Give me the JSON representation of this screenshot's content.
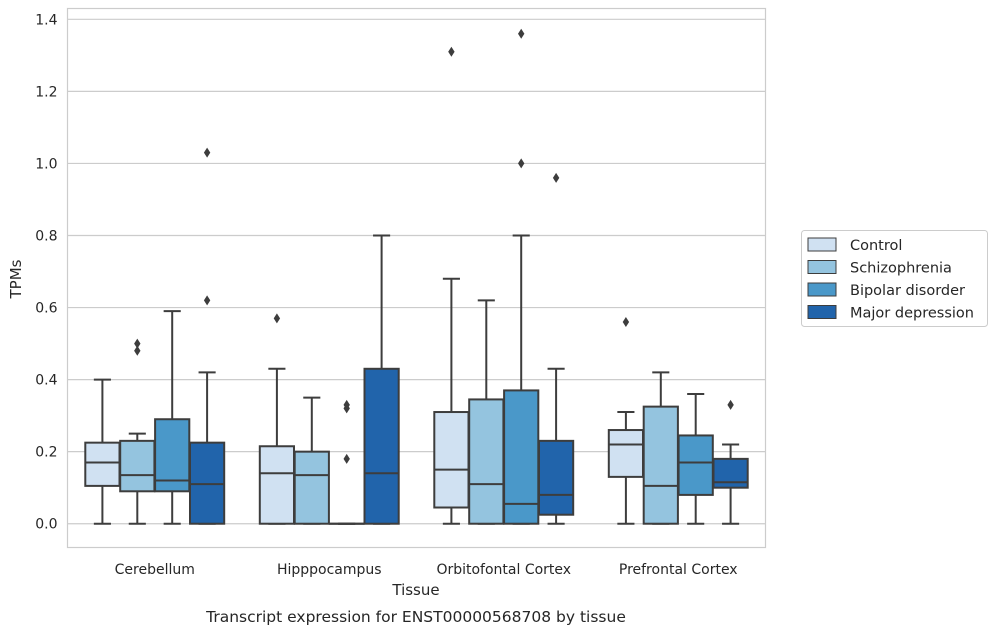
{
  "chart_data": {
    "type": "box",
    "title": "",
    "caption": "Transcript expression for ENST00000568708 by tissue",
    "xlabel": "Tissue",
    "ylabel": "TPMs",
    "ylim": [
      -0.066,
      1.43
    ],
    "yticks": [
      "0.0",
      "0.2",
      "0.4",
      "0.6",
      "0.8",
      "1.0",
      "1.2",
      "1.4"
    ],
    "grid": "horizontal",
    "legend_position": "right",
    "categories": [
      "Cerebellum",
      "Hipppocampus",
      "Orbitofontal Cortex",
      "Prefrontal Cortex"
    ],
    "series": [
      {
        "name": "Control",
        "color": "#d0e1f2",
        "boxes": [
          {
            "min": 0.0,
            "q1": 0.105,
            "median": 0.17,
            "q3": 0.225,
            "max": 0.4,
            "outliers": []
          },
          {
            "min": 0.0,
            "q1": 0.0,
            "median": 0.14,
            "q3": 0.215,
            "max": 0.43,
            "outliers": [
              0.57
            ]
          },
          {
            "min": 0.0,
            "q1": 0.045,
            "median": 0.15,
            "q3": 0.31,
            "max": 0.68,
            "outliers": [
              1.31
            ]
          },
          {
            "min": 0.0,
            "q1": 0.13,
            "median": 0.22,
            "q3": 0.26,
            "max": 0.31,
            "outliers": [
              0.56
            ]
          }
        ]
      },
      {
        "name": "Schizophrenia",
        "color": "#94c4df",
        "boxes": [
          {
            "min": 0.0,
            "q1": 0.09,
            "median": 0.135,
            "q3": 0.23,
            "max": 0.25,
            "outliers": [
              0.48,
              0.5
            ]
          },
          {
            "min": 0.0,
            "q1": 0.0,
            "median": 0.135,
            "q3": 0.2,
            "max": 0.35,
            "outliers": []
          },
          {
            "min": 0.0,
            "q1": 0.0,
            "median": 0.11,
            "q3": 0.345,
            "max": 0.62,
            "outliers": []
          },
          {
            "min": 0.0,
            "q1": 0.0,
            "median": 0.105,
            "q3": 0.325,
            "max": 0.42,
            "outliers": []
          }
        ]
      },
      {
        "name": "Bipolar disorder",
        "color": "#4a98c9",
        "boxes": [
          {
            "min": 0.0,
            "q1": 0.09,
            "median": 0.12,
            "q3": 0.29,
            "max": 0.59,
            "outliers": []
          },
          {
            "min": 0.0,
            "q1": 0.0,
            "median": 0.0,
            "q3": 0.0,
            "max": 0.0,
            "outliers": [
              0.18,
              0.32,
              0.33
            ]
          },
          {
            "min": 0.0,
            "q1": 0.0,
            "median": 0.055,
            "q3": 0.37,
            "max": 0.8,
            "outliers": [
              1.0,
              1.36
            ]
          },
          {
            "min": 0.0,
            "q1": 0.08,
            "median": 0.17,
            "q3": 0.245,
            "max": 0.36,
            "outliers": []
          }
        ]
      },
      {
        "name": "Major depression",
        "color": "#2164ab",
        "boxes": [
          {
            "min": 0.0,
            "q1": 0.0,
            "median": 0.11,
            "q3": 0.225,
            "max": 0.42,
            "outliers": [
              0.62,
              1.03
            ]
          },
          {
            "min": 0.0,
            "q1": 0.0,
            "median": 0.14,
            "q3": 0.43,
            "max": 0.8,
            "outliers": []
          },
          {
            "min": 0.0,
            "q1": 0.025,
            "median": 0.08,
            "q3": 0.23,
            "max": 0.43,
            "outliers": [
              0.96
            ]
          },
          {
            "min": 0.0,
            "q1": 0.1,
            "median": 0.115,
            "q3": 0.18,
            "max": 0.22,
            "outliers": [
              0.33
            ]
          }
        ]
      }
    ]
  }
}
